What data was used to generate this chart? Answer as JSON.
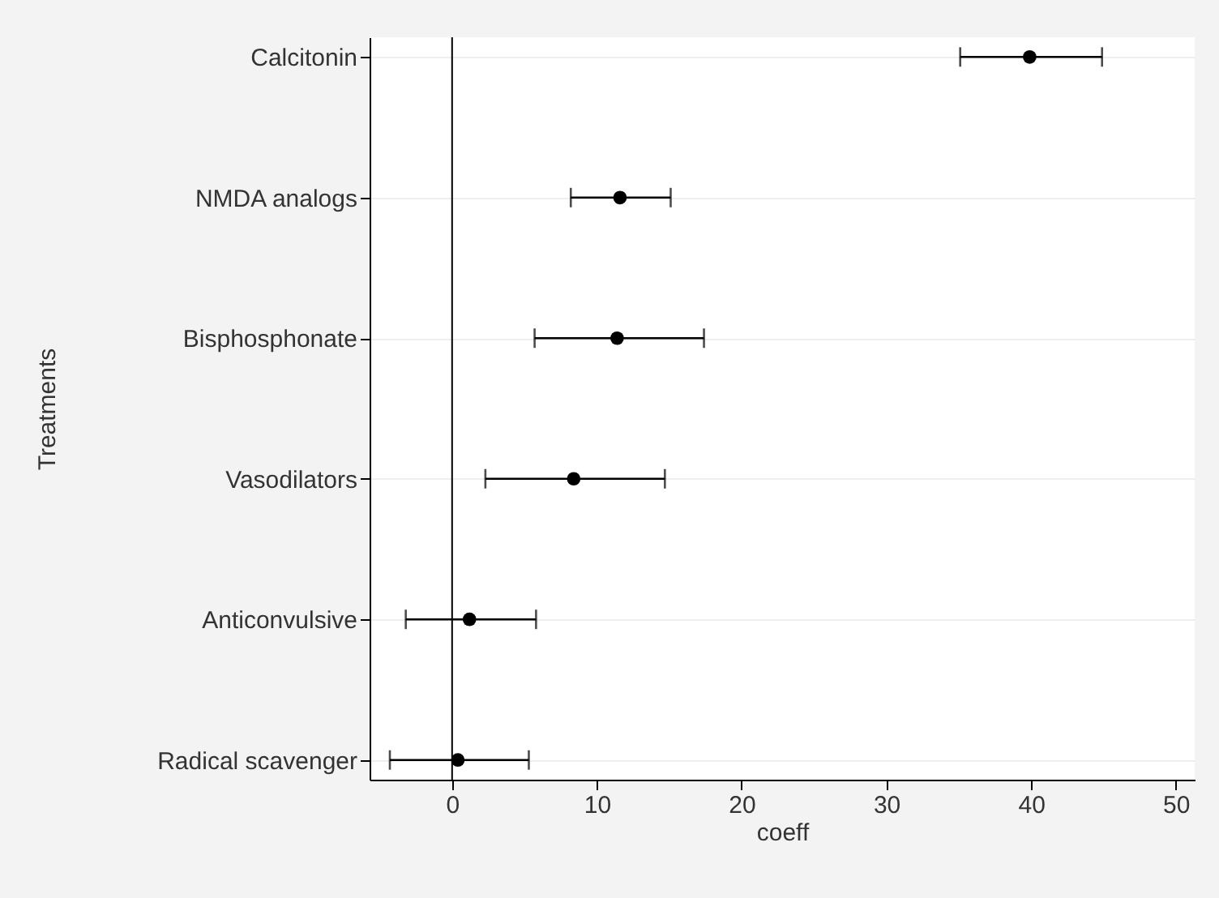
{
  "chart_data": {
    "type": "scatter",
    "orientation": "horizontal",
    "xlabel": "coeff",
    "ylabel": "Treatments",
    "categories": [
      "Calcitonin",
      "NMDA analogs",
      "Bisphosphonate",
      "Vasodilators",
      "Anticonvulsive",
      "Radical scavenger"
    ],
    "series": [
      {
        "color": "#000000",
        "values": [
          39.9,
          11.6,
          11.4,
          8.4,
          1.2,
          0.4
        ],
        "errors": [
          [
            35.1,
            44.9
          ],
          [
            8.2,
            15.1
          ],
          [
            5.7,
            17.4
          ],
          [
            2.3,
            14.7
          ],
          [
            -3.2,
            5.8
          ],
          [
            -4.3,
            5.3
          ]
        ]
      }
    ],
    "xlim": [
      -5.7,
      51.3
    ],
    "xticks": [
      0,
      10,
      20,
      30,
      40,
      50
    ],
    "ref_lines": [
      {
        "axis": "x",
        "value": 0
      }
    ],
    "grid": "y",
    "marker": "circle"
  }
}
